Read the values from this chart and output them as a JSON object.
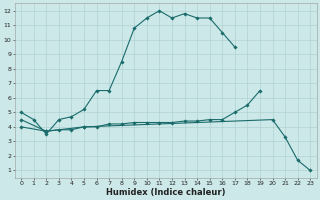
{
  "xlabel": "Humidex (Indice chaleur)",
  "bg_color": "#cce8e8",
  "grid_color": "#aacccc",
  "line_color": "#1a6b6b",
  "line1_x": [
    0,
    1,
    2,
    3,
    4,
    5,
    6,
    7,
    8,
    9,
    10,
    11,
    12,
    13,
    14,
    15,
    16,
    17
  ],
  "line1_y": [
    5.0,
    4.5,
    3.5,
    4.5,
    4.7,
    5.2,
    6.5,
    6.5,
    8.5,
    10.8,
    11.5,
    12.0,
    11.5,
    11.8,
    11.5,
    11.5,
    10.5,
    9.5
  ],
  "line2_x": [
    0,
    2,
    3,
    4,
    5,
    6,
    7,
    8,
    9,
    10,
    11,
    12,
    13,
    14,
    15,
    16,
    17,
    18,
    19
  ],
  "line2_y": [
    4.0,
    3.7,
    3.8,
    3.8,
    4.0,
    4.0,
    4.2,
    4.2,
    4.3,
    4.3,
    4.3,
    4.3,
    4.4,
    4.4,
    4.5,
    4.5,
    5.0,
    5.5,
    6.5
  ],
  "line3_x": [
    0,
    2,
    5,
    20,
    21,
    22,
    23
  ],
  "line3_y": [
    4.5,
    3.7,
    4.0,
    4.5,
    3.3,
    1.7,
    1.0
  ],
  "xlim": [
    -0.5,
    23.5
  ],
  "ylim": [
    0.5,
    12.5
  ],
  "yticks": [
    1,
    2,
    3,
    4,
    5,
    6,
    7,
    8,
    9,
    10,
    11,
    12
  ],
  "xticks": [
    0,
    1,
    2,
    3,
    4,
    5,
    6,
    7,
    8,
    9,
    10,
    11,
    12,
    13,
    14,
    15,
    16,
    17,
    18,
    19,
    20,
    21,
    22,
    23
  ],
  "tick_fontsize": 4.5,
  "xlabel_fontsize": 6.0
}
